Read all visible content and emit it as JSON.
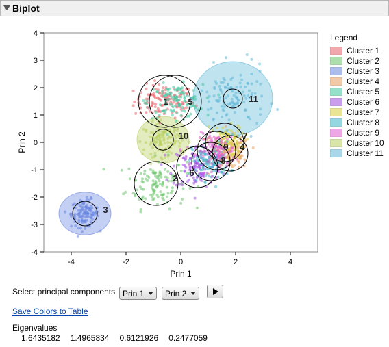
{
  "panel": {
    "title": "Biplot"
  },
  "chart_data": {
    "type": "scatter",
    "xlabel": "Prin 1",
    "ylabel": "Prin 2",
    "xlim": [
      -5,
      5
    ],
    "ylim": [
      -4,
      4
    ],
    "xticks": [
      -4,
      -2,
      0,
      2,
      4
    ],
    "yticks": [
      -4,
      -3,
      -2,
      -1,
      0,
      1,
      2,
      3,
      4
    ],
    "grid": false,
    "legend": {
      "title": "Legend",
      "placement": "right"
    },
    "clusters": [
      {
        "name": "Cluster 1",
        "label": "1",
        "color": "#e8606a",
        "center": [
          -0.6,
          1.5
        ],
        "spread": [
          0.55,
          0.3
        ],
        "ellipse": [
          0,
          0,
          0,
          0
        ],
        "circle_r": 0.95,
        "label_pos": [
          -0.55,
          1.5
        ]
      },
      {
        "name": "Cluster 2",
        "label": "2",
        "color": "#6cc46c",
        "center": [
          -0.9,
          -1.5
        ],
        "spread": [
          0.55,
          0.45
        ],
        "ellipse": [
          0,
          0,
          0,
          0
        ],
        "circle_r": 0.8,
        "label_pos": [
          -0.2,
          -1.3
        ]
      },
      {
        "name": "Cluster 3",
        "label": "3",
        "color": "#6a86e0",
        "center": [
          -3.5,
          -2.6
        ],
        "spread": [
          0.25,
          0.25
        ],
        "ellipse": [
          -3.5,
          -2.6,
          0.95,
          0.78
        ],
        "circle_r": 0.45,
        "label_pos": [
          -2.75,
          -2.45
        ]
      },
      {
        "name": "Cluster 4",
        "label": "4",
        "color": "#e8a060",
        "center": [
          1.8,
          -0.4
        ],
        "spread": [
          0.35,
          0.3
        ],
        "ellipse": [
          0,
          0,
          0,
          0
        ],
        "circle_r": 0.65,
        "label_pos": [
          2.25,
          -0.15
        ]
      },
      {
        "name": "Cluster 5",
        "label": "5",
        "color": "#40c8a0",
        "center": [
          -0.2,
          1.5
        ],
        "spread": [
          0.5,
          0.3
        ],
        "ellipse": [
          0,
          0,
          0,
          0
        ],
        "circle_r": 0.95,
        "label_pos": [
          0.35,
          1.5
        ]
      },
      {
        "name": "Cluster 6",
        "label": "6",
        "color": "#a050e0",
        "center": [
          0.6,
          -0.9
        ],
        "spread": [
          0.45,
          0.4
        ],
        "ellipse": [
          0,
          0,
          0,
          0
        ],
        "circle_r": 0.75,
        "label_pos": [
          0.4,
          -1.1
        ]
      },
      {
        "name": "Cluster 7",
        "label": "7",
        "color": "#d8d040",
        "center": [
          1.6,
          0
        ],
        "spread": [
          0.35,
          0.3
        ],
        "ellipse": [
          0,
          0,
          0,
          0
        ],
        "circle_r": 0.7,
        "label_pos": [
          2.35,
          0.25
        ]
      },
      {
        "name": "Cluster 8",
        "label": "8",
        "color": "#40b8c8",
        "center": [
          1.1,
          -0.7
        ],
        "spread": [
          0.35,
          0.35
        ],
        "ellipse": [
          0,
          0,
          0,
          0
        ],
        "circle_r": 0.7,
        "label_pos": [
          1.55,
          -0.65
        ]
      },
      {
        "name": "Cluster 9",
        "label": "9",
        "color": "#e060d0",
        "center": [
          1.3,
          -0.3
        ],
        "spread": [
          0.35,
          0.3
        ],
        "ellipse": [
          0,
          0,
          0,
          0
        ],
        "circle_r": 0.7,
        "label_pos": [
          1.65,
          -0.15
        ]
      },
      {
        "name": "Cluster 10",
        "label": "10",
        "color": "#b8d060",
        "center": [
          -0.65,
          0.1
        ],
        "spread": [
          0.35,
          0.3
        ],
        "ellipse": [
          -0.65,
          0.1,
          0.95,
          0.85
        ],
        "circle_r": 0.38,
        "label_pos": [
          0.1,
          0.25
        ]
      },
      {
        "name": "Cluster 11",
        "label": "11",
        "color": "#60b8d8",
        "center": [
          1.9,
          1.6
        ],
        "spread": [
          0.6,
          0.55
        ],
        "ellipse": [
          1.9,
          1.6,
          1.45,
          1.35
        ],
        "circle_r": 0.35,
        "label_pos": [
          2.65,
          1.6
        ]
      }
    ]
  },
  "controls": {
    "select_label": "Select principal components",
    "pc_x": "Prin 1",
    "pc_y": "Prin 2",
    "save_link": "Save Colors to Table"
  },
  "eigen": {
    "label": "Eigenvalues",
    "values": [
      "1.6435182",
      "1.4965834",
      "0.6121926",
      "0.2477059"
    ]
  }
}
